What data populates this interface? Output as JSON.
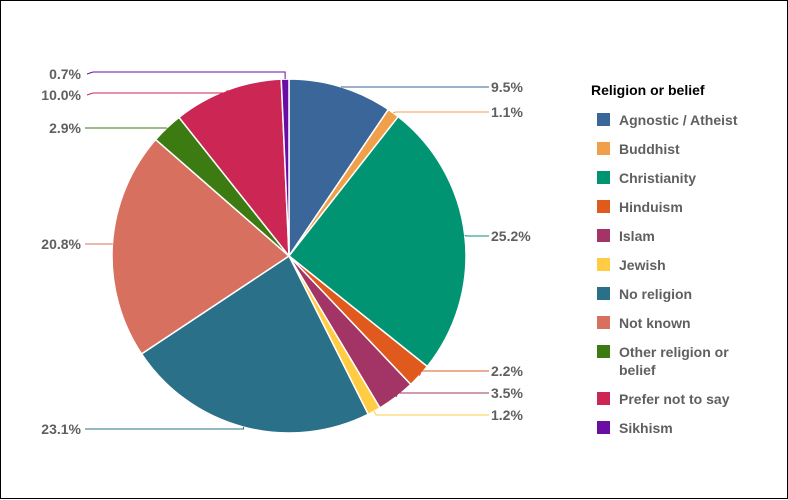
{
  "chart_data": {
    "type": "pie",
    "legend_title": "Religion or belief",
    "legend_position": "right",
    "slices": [
      {
        "name": "Agnostic / Atheist",
        "value": 9.5,
        "label": "9.5%",
        "color": "#3a6699"
      },
      {
        "name": "Buddhist",
        "value": 1.1,
        "label": "1.1%",
        "color": "#f0a04b"
      },
      {
        "name": "Christianity",
        "value": 25.2,
        "label": "25.2%",
        "color": "#009473"
      },
      {
        "name": "Hinduism",
        "value": 2.2,
        "label": "2.2%",
        "color": "#e05a1e"
      },
      {
        "name": "Islam",
        "value": 3.5,
        "label": "3.5%",
        "color": "#a23566"
      },
      {
        "name": "Jewish",
        "value": 1.2,
        "label": "1.2%",
        "color": "#ffcc44"
      },
      {
        "name": "No religion",
        "value": 23.1,
        "label": "23.1%",
        "color": "#2a7088"
      },
      {
        "name": "Not known",
        "value": 20.8,
        "label": "20.8%",
        "color": "#d7705f"
      },
      {
        "name": "Other religion or belief",
        "legend_lines": [
          "Other religion or",
          "belief"
        ],
        "value": 2.9,
        "label": "2.9%",
        "color": "#3c7a12"
      },
      {
        "name": "Prefer not to say",
        "value": 10.0,
        "label": "10.0%",
        "color": "#cc2654"
      },
      {
        "name": "Sikhism",
        "value": 0.7,
        "label": "0.7%",
        "color": "#6a0ea3"
      }
    ]
  }
}
